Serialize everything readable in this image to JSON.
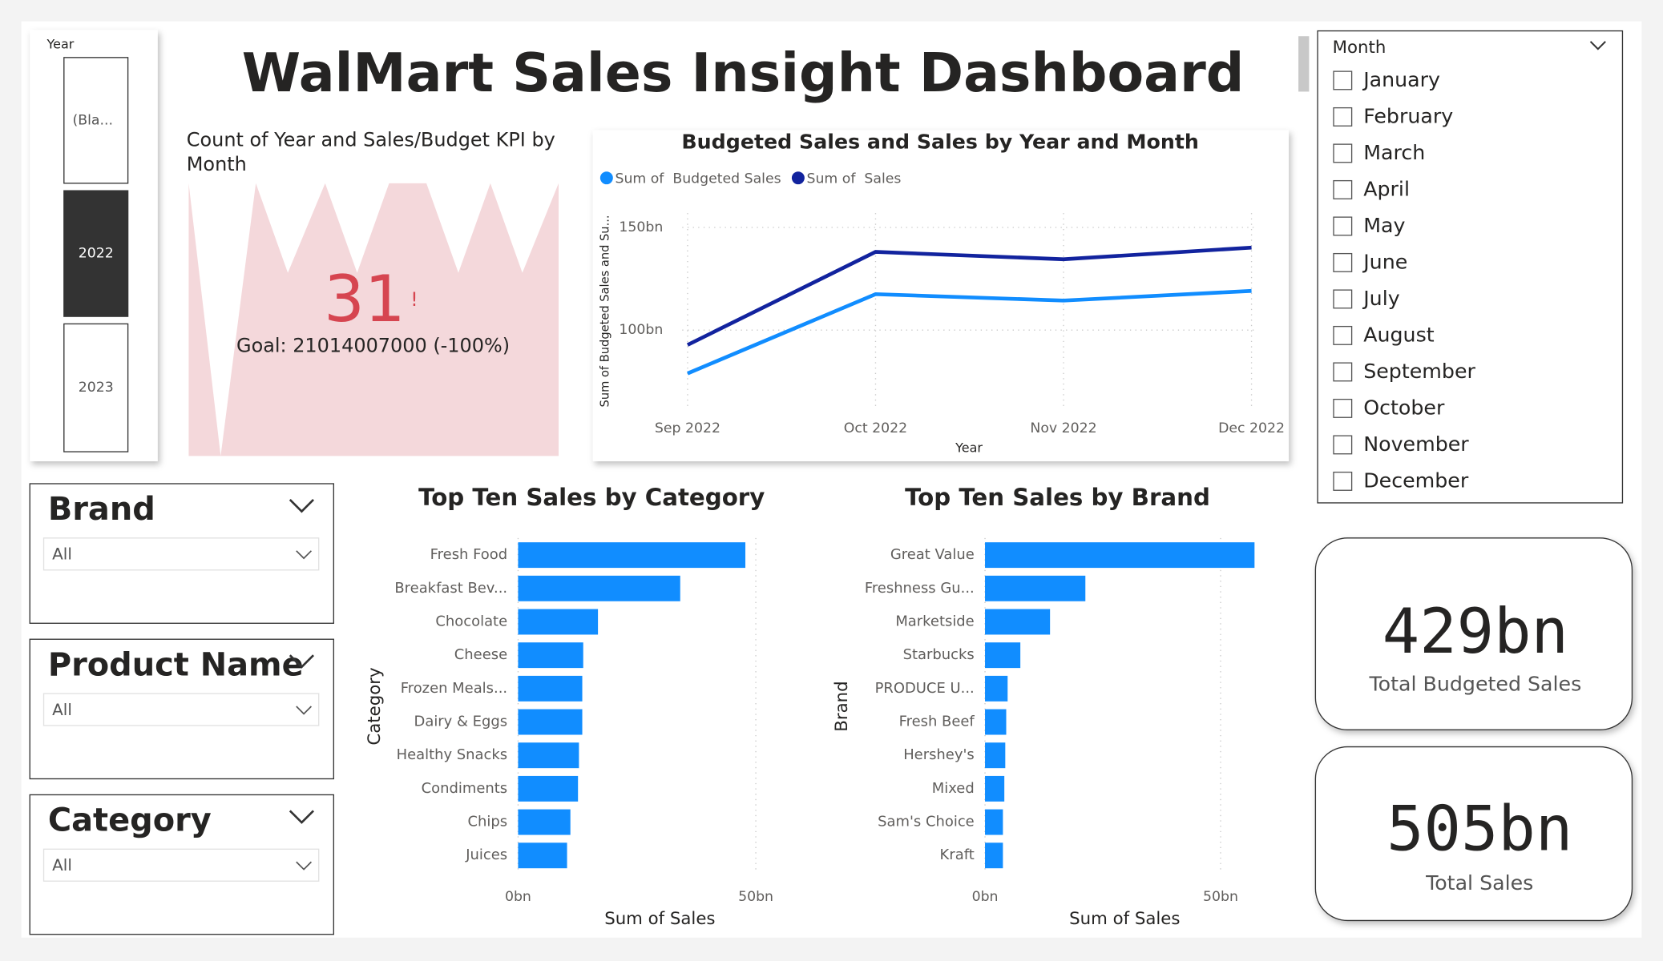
{
  "title": "WalMart Sales Insight Dashboard",
  "year_slicer": {
    "label": "Year",
    "items": [
      {
        "label": "(Bla...",
        "selected": false
      },
      {
        "label": "2022",
        "selected": true
      },
      {
        "label": "2023",
        "selected": false
      }
    ]
  },
  "kpi": {
    "title": "Count of Year and Sales/Budget KPI by Month",
    "value": "31",
    "alert": "!",
    "goal": "Goal: 21014007000 (-100%)"
  },
  "month_slicer": {
    "label": "Month",
    "items": [
      "January",
      "February",
      "March",
      "April",
      "May",
      "June",
      "July",
      "August",
      "September",
      "October",
      "November",
      "December"
    ]
  },
  "filters": [
    {
      "label": "Brand",
      "value": "All"
    },
    {
      "label": "Product Name",
      "value": "All"
    },
    {
      "label": "Category",
      "value": "All"
    }
  ],
  "cards": [
    {
      "value": "429bn",
      "label": "Total Budgeted Sales"
    },
    {
      "value": "505bn",
      "label": "Total Sales"
    }
  ],
  "chart_data": [
    {
      "type": "line",
      "title": "Budgeted Sales and Sales by Year and Month",
      "categories": [
        "Sep 2022",
        "Oct 2022",
        "Nov 2022",
        "Dec 2022"
      ],
      "x_label": "Year",
      "y_label": "Sum of Budgeted Sales and Su...",
      "series": [
        {
          "name": "Sum of  Budgeted Sales",
          "color": "#118dff",
          "values": [
            78.9,
            117.5,
            114.4,
            119.1
          ]
        },
        {
          "name": "Sum of  Sales",
          "color": "#12239e",
          "values": [
            92.8,
            138.1,
            134.5,
            140.2
          ]
        }
      ],
      "ylim": [
        61,
        157
      ],
      "yticks": [
        {
          "value": 100,
          "label": "100bn"
        },
        {
          "value": 150,
          "label": "150bn"
        }
      ],
      "grid": true
    },
    {
      "type": "hbar",
      "title": "Top Ten Sales by Category",
      "x_label": "Sum of Sales",
      "y_label": "Category",
      "categories": [
        "Fresh Food",
        "Breakfast Bev...",
        "Chocolate",
        "Cheese",
        "Frozen Meals...",
        "Dairy & Eggs",
        "Healthy Snacks",
        "Condiments",
        "Chips",
        "Juices"
      ],
      "values": [
        47.8,
        34.1,
        16.8,
        13.7,
        13.5,
        13.5,
        12.8,
        12.6,
        11.0,
        10.3
      ],
      "color": "#118dff",
      "xlim": [
        0,
        53
      ],
      "xticks": [
        {
          "value": 0,
          "label": "0bn"
        },
        {
          "value": 50,
          "label": "50bn"
        }
      ],
      "grid": true
    },
    {
      "type": "hbar",
      "title": "Top Ten Sales by Brand",
      "x_label": "Sum of Sales",
      "y_label": "Brand",
      "categories": [
        "Great Value",
        "Freshness Gu...",
        "Marketside",
        "Starbucks",
        "PRODUCE U...",
        "Fresh Beef",
        "Hershey's",
        "Mixed",
        "Sam's Choice",
        "Kraft"
      ],
      "values": [
        57.2,
        21.3,
        13.8,
        7.5,
        4.8,
        4.5,
        4.3,
        4.1,
        3.8,
        3.8
      ],
      "color": "#118dff",
      "xlim": [
        0,
        58
      ],
      "xticks": [
        {
          "value": 0,
          "label": "0bn"
        },
        {
          "value": 50,
          "label": "50bn"
        }
      ],
      "grid": true
    }
  ]
}
